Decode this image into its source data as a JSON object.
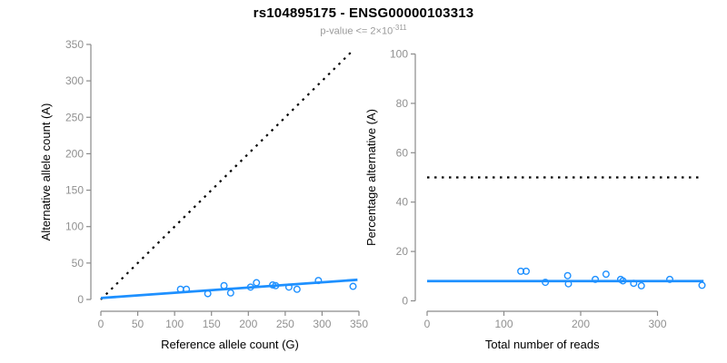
{
  "header": {
    "title": "rs104895175 - ENSG00000103313",
    "subtitle_prefix": "p-value <= 2",
    "subtitle_times": "×",
    "subtitle_base": "10",
    "subtitle_exponent": "-311"
  },
  "colors": {
    "accent_blue": "#1E90FF",
    "axis_gray": "#8a8a8a",
    "tick_label_gray": "#909090",
    "axis_title_black": "#000000",
    "reference_line_black": "#000000"
  },
  "chart_data": [
    {
      "id": "ref-vs-alt",
      "type": "scatter",
      "title": "",
      "xlabel": "Reference allele count (G)",
      "ylabel": "Alternative allele count (A)",
      "xlim": [
        0,
        350
      ],
      "ylim": [
        0,
        350
      ],
      "grid": false,
      "xticks": [
        0,
        50,
        100,
        150,
        200,
        250,
        300,
        350
      ],
      "yticks": [
        0,
        50,
        100,
        150,
        200,
        250,
        300,
        350
      ],
      "points": [
        [
          108,
          14
        ],
        [
          116,
          14
        ],
        [
          145,
          8
        ],
        [
          167,
          19
        ],
        [
          176,
          9
        ],
        [
          203,
          17
        ],
        [
          211,
          23
        ],
        [
          233,
          20
        ],
        [
          237,
          19
        ],
        [
          255,
          17
        ],
        [
          266,
          14
        ],
        [
          295,
          26
        ],
        [
          342,
          18
        ]
      ],
      "lines": [
        {
          "name": "identity-line",
          "style": "dotted",
          "color": "#000000",
          "x1": 0,
          "y1": 0,
          "x2": 342,
          "y2": 342
        },
        {
          "name": "fit-line",
          "style": "solid",
          "color": "#1E90FF",
          "x1": 0,
          "y1": 2,
          "x2": 348,
          "y2": 27
        }
      ]
    },
    {
      "id": "pct-vs-total",
      "type": "scatter",
      "title": "",
      "xlabel": "Total number of reads",
      "ylabel": "Percentage alternative (A)",
      "xlim": [
        0,
        360
      ],
      "ylim": [
        0,
        100
      ],
      "grid": false,
      "xticks": [
        0,
        100,
        200,
        300
      ],
      "yticks": [
        0,
        20,
        40,
        60,
        80,
        100
      ],
      "points": [
        [
          122,
          12
        ],
        [
          129,
          12
        ],
        [
          154,
          7.5
        ],
        [
          183,
          10.2
        ],
        [
          184,
          6.9
        ],
        [
          219,
          8.7
        ],
        [
          233,
          10.8
        ],
        [
          252,
          8.7
        ],
        [
          255,
          8.1
        ],
        [
          269,
          7.1
        ],
        [
          279,
          6.1
        ],
        [
          316,
          8.7
        ],
        [
          358,
          6.3
        ]
      ],
      "lines": [
        {
          "name": "fifty-percent-line",
          "style": "dotted",
          "color": "#000000",
          "x1": 0,
          "y1": 50,
          "x2": 355,
          "y2": 50
        },
        {
          "name": "fit-line",
          "style": "solid",
          "color": "#1E90FF",
          "x1": 0,
          "y1": 8,
          "x2": 360,
          "y2": 8
        }
      ]
    }
  ]
}
